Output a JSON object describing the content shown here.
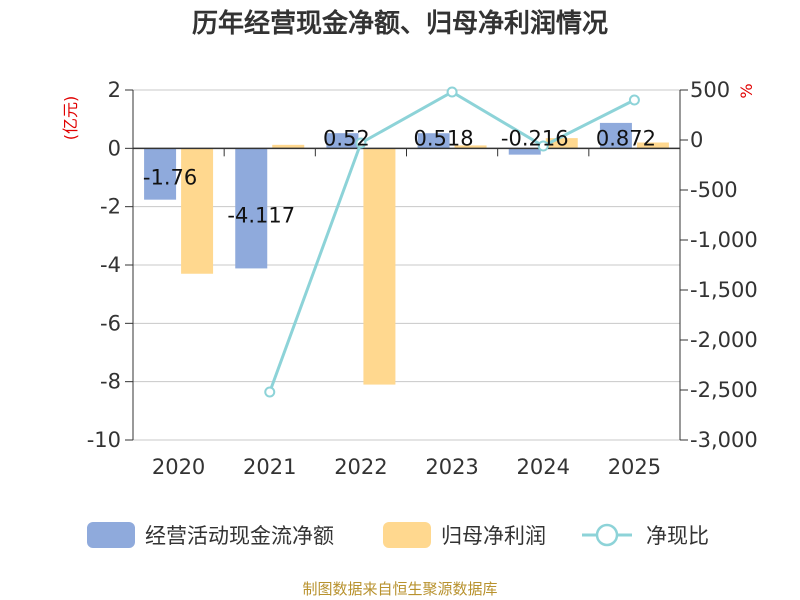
{
  "chart_data": {
    "type": "bar",
    "title": "历年经营现金净额、归母净利润情况",
    "categories": [
      "2020",
      "2021",
      "2022",
      "2023",
      "2024",
      "2025"
    ],
    "series": [
      {
        "name": "经营活动现金流净额",
        "type": "bar",
        "axis": "left",
        "color": "#8faadc",
        "values": [
          -1.76,
          -4.117,
          0.52,
          0.518,
          -0.216,
          0.872
        ],
        "labels": [
          "-1.76",
          "-4.117",
          "0.52",
          "0.518",
          "-0.216",
          "0.872"
        ]
      },
      {
        "name": "归母净利润",
        "type": "bar",
        "axis": "left",
        "color": "#ffd88f",
        "values": [
          -4.3,
          0.12,
          -8.1,
          0.1,
          0.35,
          0.2
        ]
      },
      {
        "name": "净现比",
        "type": "line",
        "axis": "right",
        "color": "#8dd3d8",
        "values": [
          null,
          -2520,
          -30,
          480,
          -60,
          400
        ]
      }
    ],
    "y_left": {
      "label": "(亿元)",
      "min": -10,
      "max": 2,
      "ticks": [
        "2",
        "0",
        "-2",
        "-4",
        "-6",
        "-8",
        "-10"
      ]
    },
    "y_right": {
      "label": "%",
      "min": -3000,
      "max": 500,
      "ticks": [
        "500",
        "0",
        "-500",
        "-1,000",
        "-1,500",
        "-2,000",
        "-2,500",
        "-3,000"
      ]
    },
    "legend_position": "bottom",
    "source": "制图数据来自恒生聚源数据库"
  }
}
